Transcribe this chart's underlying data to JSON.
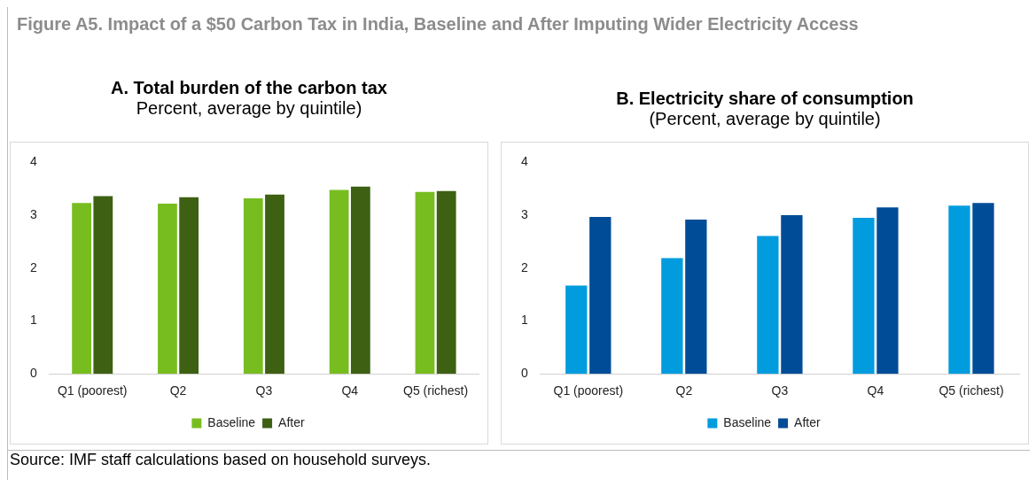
{
  "chart_data": [
    {
      "type": "bar",
      "title": "A. Total burden of the carbon tax",
      "subtitle": "Percent, average by quintile)",
      "annotations": [
        "Figure A5. Impact of a $50 Carbon Tax in India, Baseline and After Imputing Wider Electricity Access"
      ],
      "categories": [
        "Q1 (poorest)",
        "Q2",
        "Q3",
        "Q4",
        "Q5 (richest)"
      ],
      "series": [
        {
          "name": "Baseline",
          "color": "#78bd20",
          "values": [
            3.23,
            3.22,
            3.32,
            3.48,
            3.44
          ]
        },
        {
          "name": "After",
          "color": "#3d6013",
          "values": [
            3.36,
            3.34,
            3.39,
            3.54,
            3.46
          ]
        }
      ],
      "ylim": [
        0,
        4
      ],
      "yticks": [
        0,
        1,
        2,
        3,
        4
      ],
      "legend": "bottom"
    },
    {
      "type": "bar",
      "title": "B. Electricity share of consumption",
      "subtitle": "(Percent, average by quintile)",
      "annotations": [
        "Source: IMF staff calculations based on household surveys."
      ],
      "categories": [
        "Q1 (poorest)",
        "Q2",
        "Q3",
        "Q4",
        "Q5 (richest)"
      ],
      "series": [
        {
          "name": "Baseline",
          "color": "#009cde",
          "values": [
            1.67,
            2.19,
            2.61,
            2.95,
            3.18
          ]
        },
        {
          "name": "After",
          "color": "#004c97",
          "values": [
            2.97,
            2.92,
            3.0,
            3.15,
            3.23
          ]
        }
      ],
      "ylim": [
        0,
        4
      ],
      "yticks": [
        0,
        1,
        2,
        3,
        4
      ],
      "legend": "bottom"
    }
  ]
}
